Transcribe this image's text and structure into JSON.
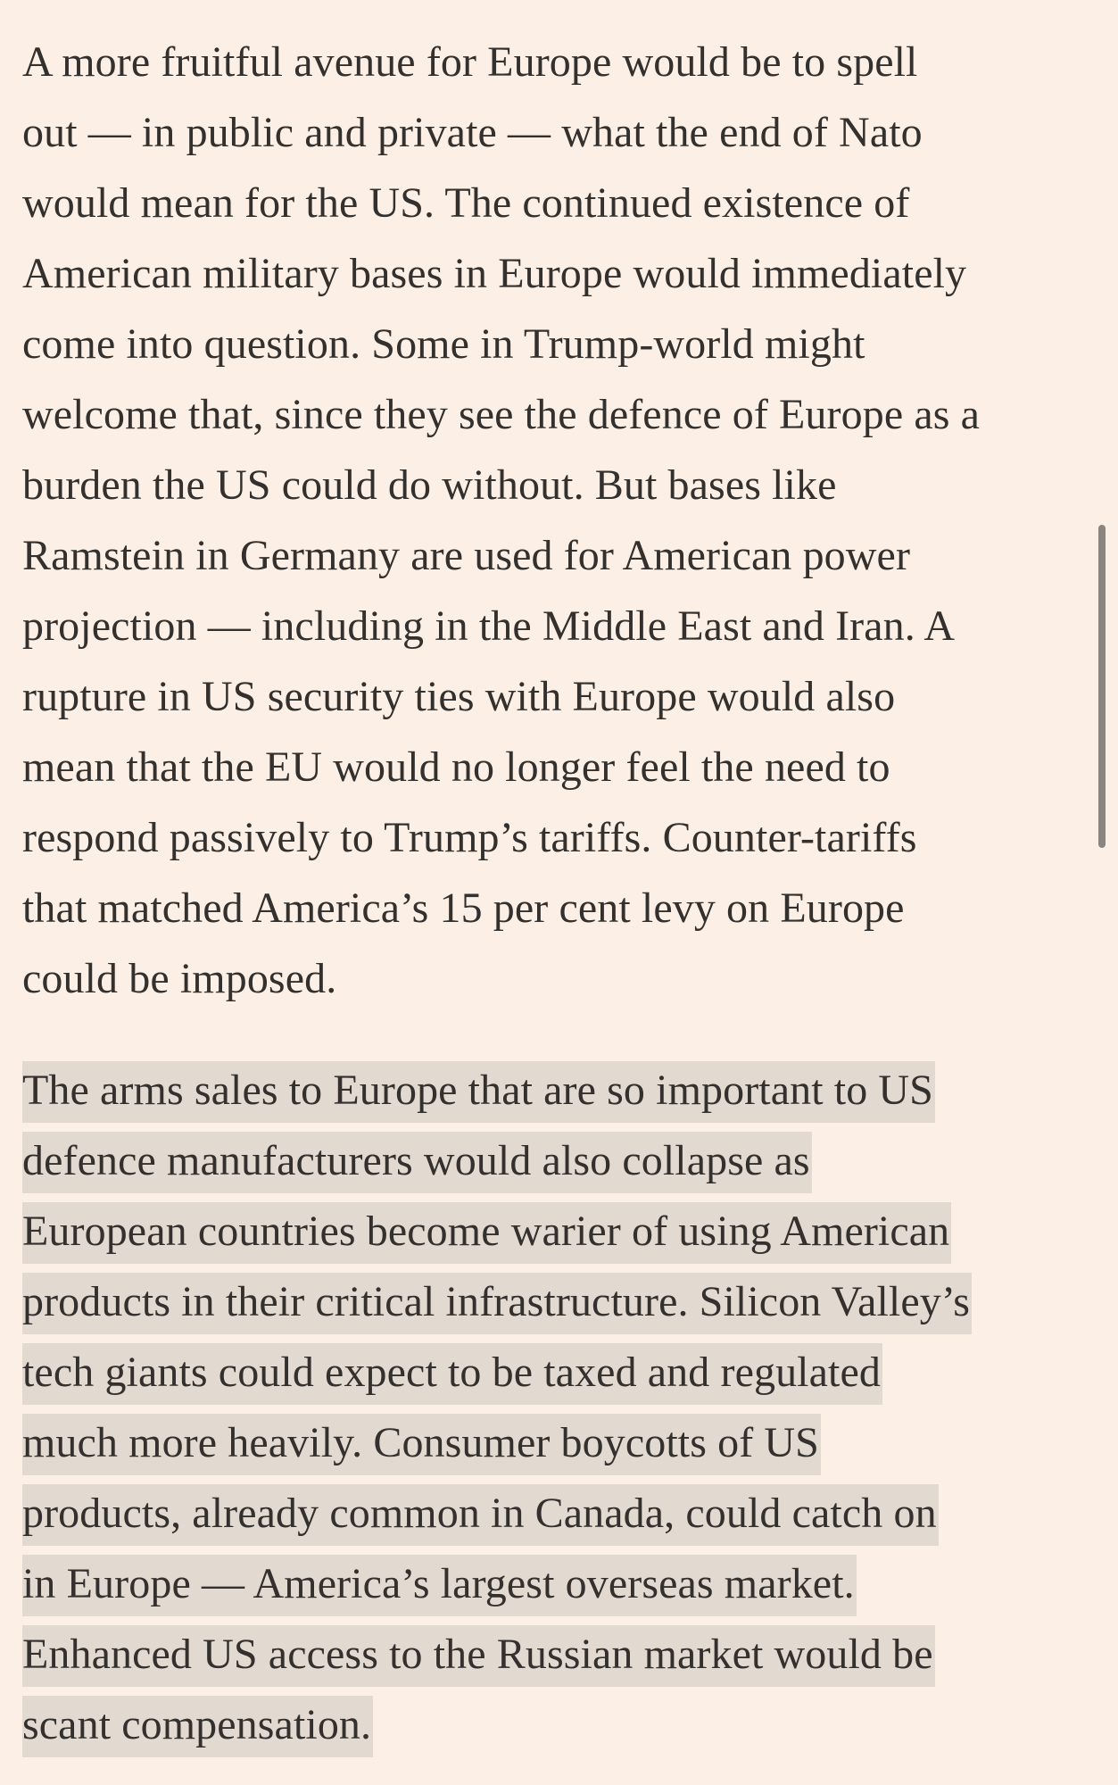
{
  "article": {
    "paragraph_1": [
      "A more fruitful avenue for Europe would be to spell",
      "out — in public and private — what the end of Nato",
      "would mean for the US. The continued existence of",
      "American military bases in Europe would immediately",
      "come into question. Some in Trump-world might",
      "welcome that, since they see the defence of Europe as a",
      "burden the US could do without. But bases like",
      "Ramstein in Germany are used for American power",
      "projection — including in the Middle East and Iran. A",
      "rupture in US security ties with Europe would also",
      "mean that the EU would no longer feel the need to",
      "respond passively to Trump’s tariffs. Counter-tariffs",
      "that matched America’s 15 per cent levy on Europe",
      "could be imposed."
    ],
    "paragraph_2_highlighted": [
      "The arms sales to Europe that are so important to US",
      "defence manufacturers would also collapse as",
      "European countries become warier of using American",
      "products in their critical infrastructure. Silicon Valley’s",
      "tech giants could expect to be taxed and regulated",
      "much more heavily. Consumer boycotts of US",
      "products, already common in Canada, could catch on",
      "in Europe — America’s largest overseas market.",
      "Enhanced US access to the Russian market would be",
      "scant compensation."
    ]
  },
  "colors": {
    "background": "#fcf0e6",
    "text": "#33302e",
    "highlight": "#e2d9d0",
    "scrollbar": "#8a8581"
  }
}
